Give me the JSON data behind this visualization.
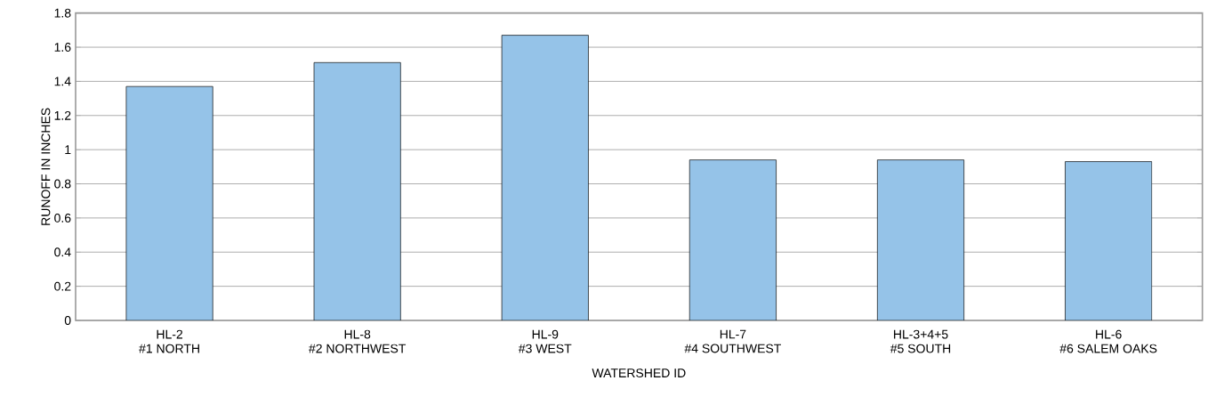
{
  "chart_data": {
    "type": "bar",
    "xlabel": "WATERSHED ID",
    "ylabel": "RUNOFF IN INCHES",
    "categories": [
      "HL-2\n#1 NORTH",
      "HL-8\n#2 NORTHWEST",
      "HL-9\n#3 WEST",
      "HL-7\n#4 SOUTHWEST",
      "HL-3+4+5\n#5 SOUTH",
      "HL-6\n#6 SALEM OAKS"
    ],
    "values": [
      1.37,
      1.51,
      1.67,
      0.94,
      0.94,
      0.93
    ],
    "color": "#95c3e8",
    "ylim": [
      0,
      1.8
    ],
    "yticks": [
      0,
      0.2,
      0.4,
      0.6,
      0.8,
      1,
      1.2,
      1.4,
      1.6,
      1.8
    ],
    "grid": "y"
  }
}
